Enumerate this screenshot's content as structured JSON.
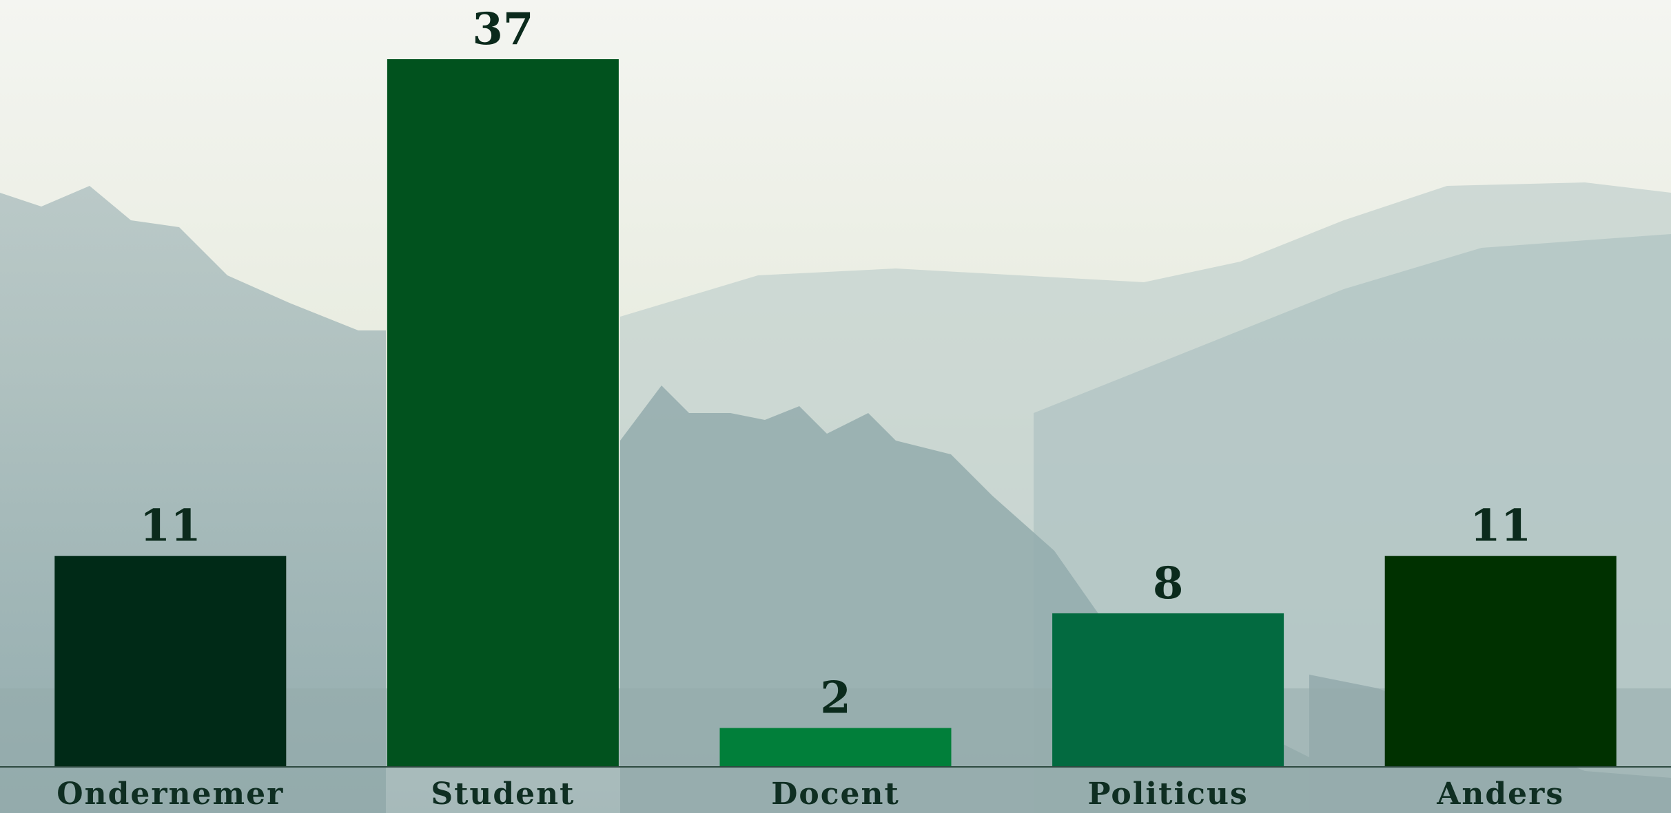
{
  "chart_data": {
    "type": "bar",
    "categories": [
      "Ondernemer",
      "Student",
      "Docent",
      "Politicus",
      "Anders"
    ],
    "values": [
      11,
      37,
      2,
      8,
      11
    ],
    "colors": [
      "#002a17",
      "#01521e",
      "#017f3a",
      "#036a40",
      "#003100"
    ]
  }
}
